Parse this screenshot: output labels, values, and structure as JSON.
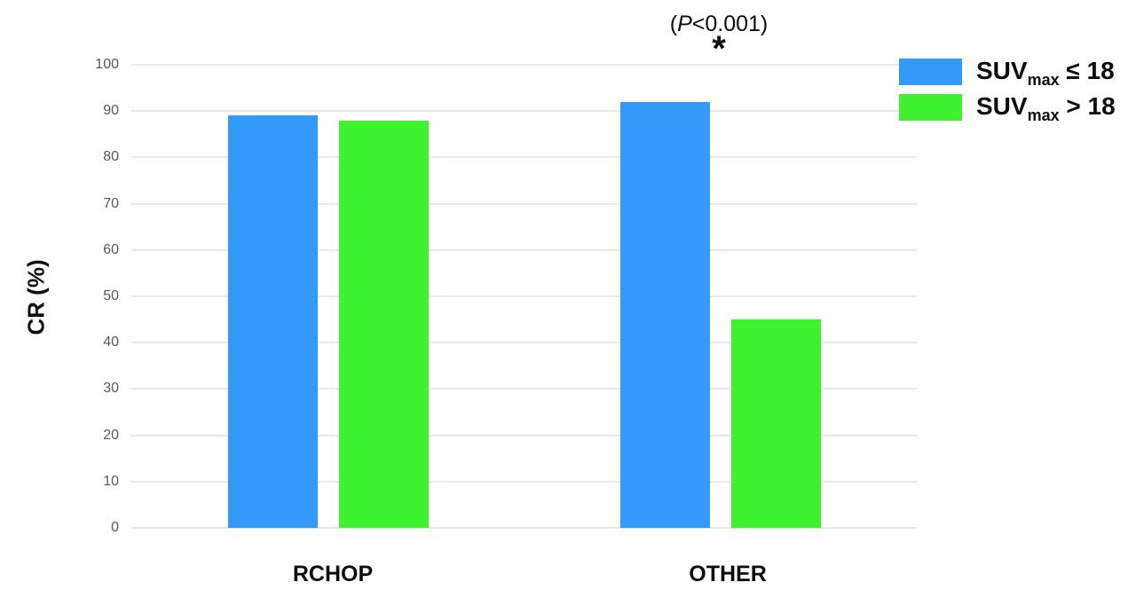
{
  "chart_data": {
    "type": "bar",
    "title": "",
    "categories": [
      "RCHOP",
      "OTHER"
    ],
    "series": [
      {
        "name": "SUVmax ≤ 18",
        "color": "#3399FA",
        "values": [
          89,
          92
        ],
        "label_parts": {
          "prefix": "SUV",
          "sub": "max",
          "suffix": " ≤ 18"
        }
      },
      {
        "name": "SUVmax > 18",
        "color": "#3EF32E",
        "values": [
          88,
          45
        ],
        "label_parts": {
          "prefix": "SUV",
          "sub": "max",
          "suffix": " > 18"
        }
      }
    ],
    "xlabel": "",
    "ylabel": "CR (%)",
    "ylim": [
      0,
      100
    ],
    "yticks": [
      0,
      10,
      20,
      30,
      40,
      50,
      60,
      70,
      80,
      90,
      100
    ],
    "grid": true,
    "legend_position": "top-right",
    "annotation": {
      "target_category": "OTHER",
      "text": "(P<0.001)",
      "text_parts": {
        "open": "(",
        "p": "P",
        "rest": "<0.001)"
      },
      "star": "*"
    }
  }
}
